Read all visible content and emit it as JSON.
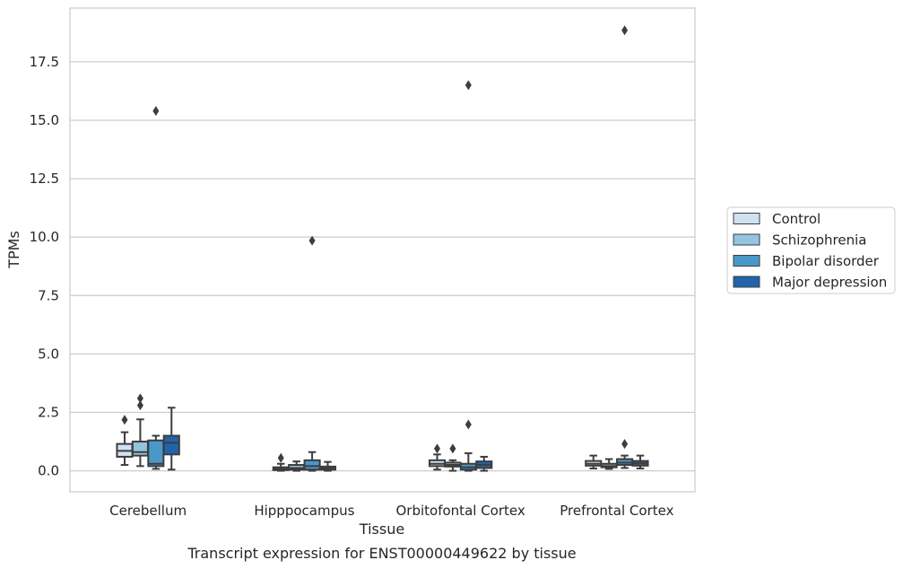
{
  "caption": "Transcript expression for ENST00000449622 by tissue",
  "chart_data": {
    "type": "boxplot",
    "title": "",
    "xlabel": "Tissue",
    "ylabel": "TPMs",
    "categories": [
      "Cerebellum",
      "Hipppocampus",
      "Orbitofontal Cortex",
      "Prefrontal Cortex"
    ],
    "ylim": [
      -0.9,
      19.8
    ],
    "yticks": [
      "0.0",
      "2.5",
      "5.0",
      "7.5",
      "10.0",
      "12.5",
      "15.0",
      "17.5"
    ],
    "ytick_values": [
      0,
      2.5,
      5,
      7.5,
      10,
      12.5,
      15,
      17.5
    ],
    "grid": "horizontal",
    "legend_position": "right",
    "series": [
      {
        "name": "Control",
        "color": "#d0e1f2",
        "boxes": [
          {
            "whislo": 0.25,
            "q1": 0.6,
            "med": 0.85,
            "q3": 1.15,
            "whishi": 1.65,
            "fliers": [
              2.18
            ]
          },
          {
            "whislo": 0.0,
            "q1": 0.03,
            "med": 0.08,
            "q3": 0.15,
            "whishi": 0.3,
            "fliers": [
              0.55
            ]
          },
          {
            "whislo": 0.05,
            "q1": 0.2,
            "med": 0.3,
            "q3": 0.45,
            "whishi": 0.7,
            "fliers": [
              0.95
            ]
          },
          {
            "whislo": 0.1,
            "q1": 0.22,
            "med": 0.3,
            "q3": 0.42,
            "whishi": 0.65,
            "fliers": []
          }
        ]
      },
      {
        "name": "Schizophrenia",
        "color": "#94c4df",
        "boxes": [
          {
            "whislo": 0.2,
            "q1": 0.65,
            "med": 0.8,
            "q3": 1.25,
            "whishi": 2.2,
            "fliers": [
              2.8,
              3.1
            ]
          },
          {
            "whislo": 0.0,
            "q1": 0.05,
            "med": 0.12,
            "q3": 0.25,
            "whishi": 0.4,
            "fliers": []
          },
          {
            "whislo": 0.0,
            "q1": 0.18,
            "med": 0.25,
            "q3": 0.35,
            "whishi": 0.45,
            "fliers": [
              0.95
            ]
          },
          {
            "whislo": 0.08,
            "q1": 0.15,
            "med": 0.2,
            "q3": 0.3,
            "whishi": 0.5,
            "fliers": []
          }
        ]
      },
      {
        "name": "Bipolar disorder",
        "color": "#4a98c9",
        "boxes": [
          {
            "whislo": 0.08,
            "q1": 0.2,
            "med": 0.3,
            "q3": 1.3,
            "whishi": 1.5,
            "fliers": [
              15.4
            ]
          },
          {
            "whislo": 0.0,
            "q1": 0.05,
            "med": 0.2,
            "q3": 0.45,
            "whishi": 0.8,
            "fliers": [
              9.85
            ]
          },
          {
            "whislo": 0.0,
            "q1": 0.05,
            "med": 0.15,
            "q3": 0.3,
            "whishi": 0.75,
            "fliers": [
              1.98,
              16.5
            ]
          },
          {
            "whislo": 0.12,
            "q1": 0.25,
            "med": 0.35,
            "q3": 0.5,
            "whishi": 0.65,
            "fliers": [
              1.15,
              18.85
            ]
          }
        ]
      },
      {
        "name": "Major depression",
        "color": "#2164ab",
        "boxes": [
          {
            "whislo": 0.05,
            "q1": 0.7,
            "med": 1.2,
            "q3": 1.5,
            "whishi": 2.7,
            "fliers": []
          },
          {
            "whislo": 0.0,
            "q1": 0.05,
            "med": 0.1,
            "q3": 0.18,
            "whishi": 0.38,
            "fliers": []
          },
          {
            "whislo": 0.0,
            "q1": 0.12,
            "med": 0.25,
            "q3": 0.4,
            "whishi": 0.6,
            "fliers": []
          },
          {
            "whislo": 0.1,
            "q1": 0.22,
            "med": 0.32,
            "q3": 0.42,
            "whishi": 0.65,
            "fliers": []
          }
        ]
      }
    ]
  }
}
